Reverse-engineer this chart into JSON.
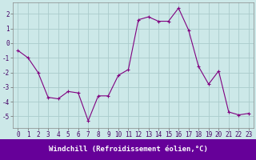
{
  "x": [
    0,
    1,
    2,
    3,
    4,
    5,
    6,
    7,
    8,
    9,
    10,
    11,
    12,
    13,
    14,
    15,
    16,
    17,
    18,
    19,
    20,
    21,
    22,
    23
  ],
  "y": [
    -0.5,
    -1.0,
    -2.0,
    -3.7,
    -3.8,
    -3.3,
    -3.4,
    -5.3,
    -3.6,
    -3.6,
    -2.2,
    -1.8,
    1.6,
    1.8,
    1.5,
    1.5,
    2.4,
    0.9,
    -1.6,
    -2.8,
    -1.9,
    -4.7,
    -4.9,
    -4.8
  ],
  "line_color": "#800080",
  "marker": "+",
  "bg_color": "#cce8e8",
  "grid_color": "#aacccc",
  "xlabel": "Windchill (Refroidissement éolien,°C)",
  "xlabel_bg": "#660099",
  "xlabel_color": "#ffffff",
  "yticks": [
    -5,
    -4,
    -3,
    -2,
    -1,
    0,
    1,
    2
  ],
  "xticks": [
    0,
    1,
    2,
    3,
    4,
    5,
    6,
    7,
    8,
    9,
    10,
    11,
    12,
    13,
    14,
    15,
    16,
    17,
    18,
    19,
    20,
    21,
    22,
    23
  ],
  "xlim": [
    -0.5,
    23.5
  ],
  "ylim": [
    -5.8,
    2.8
  ],
  "tick_fontsize": 5.5,
  "xlabel_fontsize": 6.5
}
